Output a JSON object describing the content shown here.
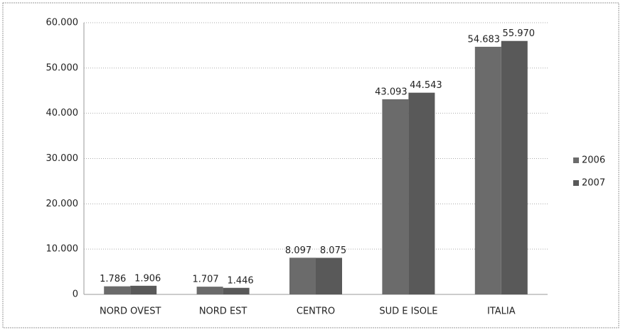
{
  "chart_data": {
    "type": "bar",
    "categories": [
      "NORD OVEST",
      "NORD EST",
      "CENTRO",
      "SUD E ISOLE",
      "ITALIA"
    ],
    "series": [
      {
        "name": "2006",
        "color": "#6b6b6b",
        "values": [
          1786,
          1707,
          8097,
          43093,
          54683
        ],
        "value_labels": [
          "1.786",
          "1.707",
          "8.097",
          "43.093",
          "54.683"
        ]
      },
      {
        "name": "2007",
        "color": "#595959",
        "values": [
          1906,
          1446,
          8075,
          44543,
          55970
        ],
        "value_labels": [
          "1.906",
          "1.446",
          "8.075",
          "44.543",
          "55.970"
        ]
      }
    ],
    "ylim": [
      0,
      60000
    ],
    "yticks": [
      0,
      {
        "value": 10000,
        "label": "10.000"
      },
      {
        "value": 20000,
        "label": "20.000"
      },
      {
        "value": 30000,
        "label": "30.000"
      },
      {
        "value": 40000,
        "label": "40.000"
      },
      {
        "value": 50000,
        "label": "50.000"
      },
      {
        "value": 60000,
        "label": "60.000"
      }
    ],
    "grid": true,
    "legend": "right"
  }
}
